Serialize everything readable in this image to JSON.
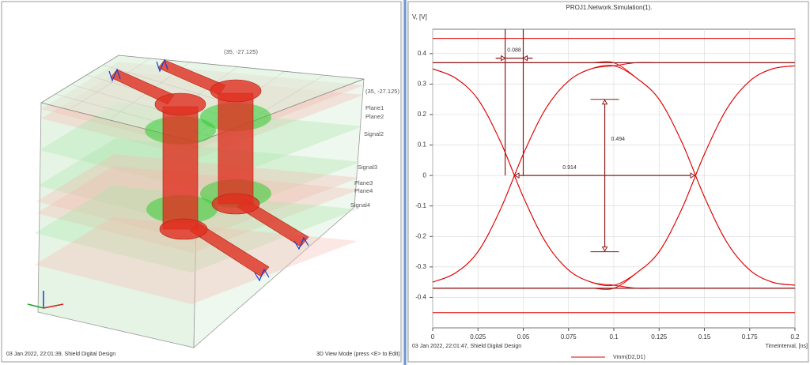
{
  "left_panel": {
    "corner_labels": [
      "(35, -27.125)",
      "(35, -27.125)"
    ],
    "layers": [
      "Plane1",
      "Plane2",
      "Signal2",
      "Signal3",
      "Plane3",
      "Plane4",
      "Signal4"
    ],
    "footer_left": "03 Jan 2022, 22:01:39, Shield Digital Design",
    "footer_right": "3D View Mode (press <E> to Edit)"
  },
  "chart_data": {
    "type": "eye",
    "title": "PROJ1.Network.Simulation(1).",
    "y_label": "V, [V]",
    "x_label": "TimeInterval, [ns]",
    "footer": "03 Jan 2022, 22:01:47, Shield Digital Design",
    "xlim": [
      0,
      0.2
    ],
    "xticks": [
      0,
      0.025,
      0.05,
      0.075,
      0.1,
      0.125,
      0.15,
      0.175,
      0.2
    ],
    "ylim": [
      -0.5,
      0.48
    ],
    "yticks": [
      -0.4,
      -0.3,
      -0.2,
      -0.1,
      0,
      0.1,
      0.2,
      0.3,
      0.4
    ],
    "grid": true,
    "x": [
      0,
      0.0125,
      0.025,
      0.0375,
      0.05,
      0.0625,
      0.075,
      0.0875,
      0.1,
      0.1125,
      0.125,
      0.1375,
      0.15,
      0.1625,
      0.175,
      0.1875,
      0.2
    ],
    "series": [
      {
        "name": "Vmm(D2,D1)",
        "color": "#e00000",
        "traces": [
          [
            -0.35,
            -0.32,
            -0.25,
            -0.11,
            0.07,
            0.22,
            0.31,
            0.35,
            0.36,
            0.32,
            0.25,
            0.11,
            -0.07,
            -0.22,
            -0.31,
            -0.35,
            -0.36
          ],
          [
            -0.35,
            -0.32,
            -0.25,
            -0.11,
            0.07,
            0.22,
            0.31,
            0.35,
            0.36,
            0.37,
            0.37,
            0.37,
            0.37,
            0.37,
            0.37,
            0.37,
            0.37
          ],
          [
            0.35,
            0.32,
            0.25,
            0.11,
            -0.07,
            -0.22,
            -0.31,
            -0.35,
            -0.36,
            -0.32,
            -0.25,
            -0.11,
            0.07,
            0.22,
            0.31,
            0.35,
            0.36
          ],
          [
            0.35,
            0.32,
            0.25,
            0.11,
            -0.07,
            -0.22,
            -0.31,
            -0.35,
            -0.36,
            -0.37,
            -0.37,
            -0.37,
            -0.37,
            -0.37,
            -0.37,
            -0.37,
            -0.37
          ],
          [
            0.37,
            0.37,
            0.37,
            0.37,
            0.37,
            0.37,
            0.37,
            0.37,
            0.37,
            0.32,
            0.25,
            0.11,
            -0.07,
            -0.22,
            -0.31,
            -0.35,
            -0.36
          ],
          [
            -0.37,
            -0.37,
            -0.37,
            -0.37,
            -0.37,
            -0.37,
            -0.37,
            -0.37,
            -0.37,
            -0.32,
            -0.25,
            -0.11,
            0.07,
            0.22,
            0.31,
            0.35,
            0.36
          ],
          [
            0.37,
            0.37,
            0.37,
            0.37,
            0.37,
            0.37,
            0.37,
            0.37,
            0.37,
            0.37,
            0.37,
            0.37,
            0.37,
            0.37,
            0.37,
            0.37,
            0.37
          ],
          [
            -0.37,
            -0.37,
            -0.37,
            -0.37,
            -0.37,
            -0.37,
            -0.37,
            -0.37,
            -0.37,
            -0.37,
            -0.37,
            -0.37,
            -0.37,
            -0.37,
            -0.37,
            -0.37,
            -0.37
          ],
          [
            0.45,
            0.45,
            0.45,
            0.45,
            0.45,
            0.45,
            0.45,
            0.45,
            0.45,
            0.45,
            0.45,
            0.45,
            0.45,
            0.45,
            0.45,
            0.45,
            0.45
          ],
          [
            -0.45,
            -0.45,
            -0.45,
            -0.45,
            -0.45,
            -0.45,
            -0.45,
            -0.45,
            -0.45,
            -0.45,
            -0.45,
            -0.45,
            -0.45,
            -0.45,
            -0.45,
            -0.45,
            -0.45
          ]
        ]
      }
    ],
    "cursor_lines": {
      "x": [
        0.04,
        0.05
      ],
      "y": [
        0.37,
        -0.37
      ]
    },
    "annotations": [
      {
        "label": "0.088",
        "x": [
          0.04,
          0.05
        ],
        "y": 0.385
      },
      {
        "label": "0.914",
        "x": [
          0.045,
          0.145
        ],
        "y": 0
      },
      {
        "label": "0.494",
        "x": 0.095,
        "y": [
          0.25,
          -0.25
        ]
      }
    ]
  }
}
